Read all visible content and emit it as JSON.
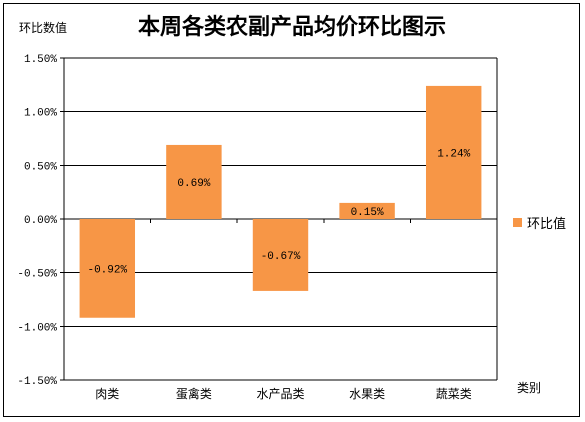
{
  "chart_data": {
    "type": "bar",
    "title": "本周各类农副产品均价环比图示",
    "ylabel": "环比数值",
    "xlabel": "类别",
    "categories": [
      "肉类",
      "蛋禽类",
      "水产品类",
      "水果类",
      "蔬菜类"
    ],
    "series": [
      {
        "name": "环比值",
        "values": [
          -0.92,
          0.69,
          -0.67,
          0.15,
          1.24
        ],
        "data_labels": [
          "-0.92%",
          "0.69%",
          "-0.67%",
          "0.15%",
          "1.24%"
        ]
      }
    ],
    "ylim": [
      -1.5,
      1.5
    ],
    "yticks": [
      1.5,
      1.0,
      0.5,
      0.0,
      -0.5,
      -1.0,
      -1.5
    ],
    "ytick_labels": [
      "1.50%",
      "1.00%",
      "0.50%",
      "0.00%",
      "-0.50%",
      "-1.00%",
      "-1.50%"
    ],
    "grid": true,
    "legend_position": "right",
    "colors": {
      "bar": "#F79646",
      "grid": "#000000",
      "axis": "#000000"
    }
  }
}
